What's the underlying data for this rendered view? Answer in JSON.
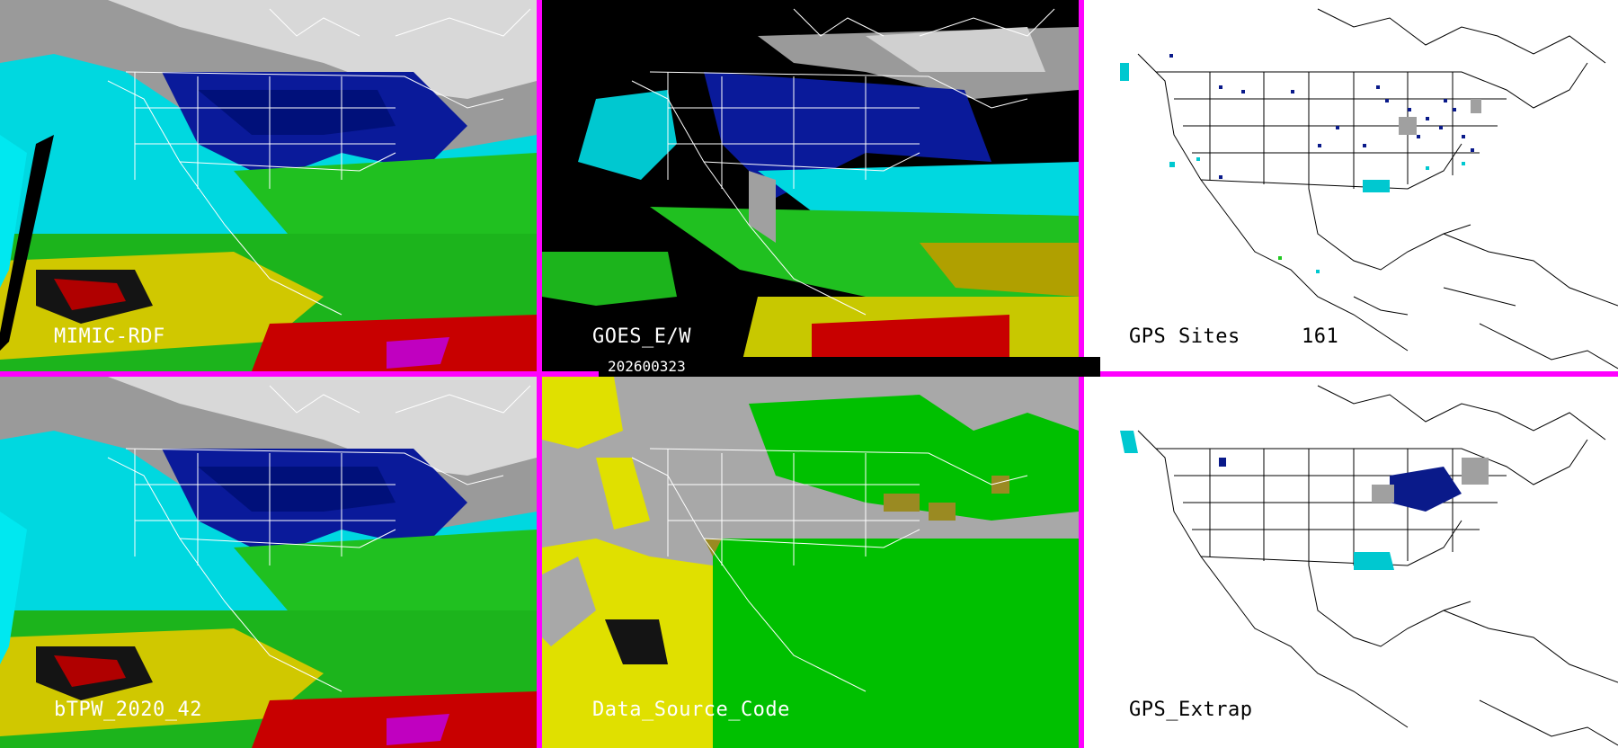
{
  "panels": {
    "mimic_rdf": {
      "label": "MIMIC-RDF"
    },
    "goes_ew": {
      "label": "GOES_E/W"
    },
    "gps_sites": {
      "label": "GPS Sites",
      "count": "161"
    },
    "btpw": {
      "label": "bTPW_2020_42"
    },
    "data_source_code": {
      "label": "Data_Source_Code"
    },
    "gps_extrap": {
      "label": "GPS_Extrap"
    }
  },
  "timestamp": "202600323",
  "colors": {
    "border": "#ff00ff",
    "tpw_scale": [
      "#1a1a1a",
      "#8c8c8c",
      "#d0d0d0",
      "#000a8c",
      "#0022c8",
      "#00e0e0",
      "#22c822",
      "#c8c800",
      "#d4d400",
      "#c80000",
      "#ff3030",
      "#c800c8"
    ],
    "data_source": {
      "background": "#a8a8a8",
      "green": "#00c000",
      "yellow": "#e0e000",
      "olive": "#9a8a22"
    }
  }
}
